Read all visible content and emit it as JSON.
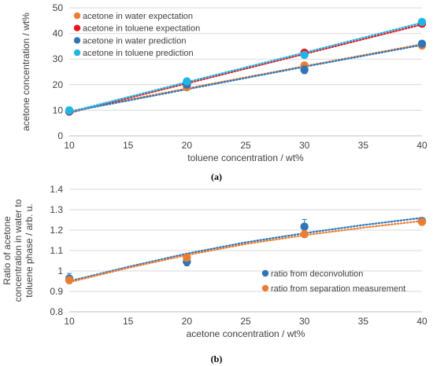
{
  "chart_data": [
    {
      "panel": "(a)",
      "type": "scatter",
      "xlabel": "toluene concentration / wt%",
      "ylabel": "acetone concentration / wt%",
      "xlim": [
        10,
        40
      ],
      "ylim": [
        0,
        50
      ],
      "xticks": [
        10,
        15,
        20,
        25,
        30,
        35,
        40
      ],
      "yticks": [
        0,
        10,
        20,
        30,
        40,
        50
      ],
      "grid": "horizontal",
      "legend_position": "top-left",
      "trendlines": "dotted linear fit per series",
      "series": [
        {
          "name": "acetone in water expectation",
          "color": "#ED7D31",
          "x": [
            10,
            20,
            30,
            40
          ],
          "y": [
            9.4,
            19.0,
            27.5,
            35.3
          ],
          "error": [
            0,
            0,
            0,
            0
          ],
          "trend": [
            9.6,
            18.5,
            27.2,
            35.8
          ]
        },
        {
          "name": "acetone in toluene expectation",
          "color": "#E5141B",
          "x": [
            10,
            20,
            30,
            40
          ],
          "y": [
            9.5,
            20.5,
            32.5,
            43.8
          ],
          "error": [
            0,
            0,
            0,
            0
          ],
          "trend": [
            9.0,
            20.5,
            32.0,
            43.5
          ]
        },
        {
          "name": "acetone in water prediction",
          "color": "#2E75B6",
          "x": [
            10,
            20,
            30,
            40
          ],
          "y": [
            9.6,
            20.0,
            25.8,
            36.0
          ],
          "error": [
            0.3,
            0.4,
            1.5,
            0.8
          ],
          "trend": [
            9.4,
            18.2,
            27.0,
            35.5
          ]
        },
        {
          "name": "acetone in toluene prediction",
          "color": "#21B5E6",
          "x": [
            10,
            20,
            30,
            40
          ],
          "y": [
            10.0,
            21.3,
            31.6,
            44.5
          ],
          "error": [
            0.4,
            1.2,
            1.0,
            1.2
          ],
          "trend": [
            9.3,
            21.0,
            32.5,
            44.2
          ]
        }
      ]
    },
    {
      "panel": "(b)",
      "type": "scatter",
      "xlabel": "acetone concentration / wt%",
      "ylabel_lines": [
        "Ratio of acetone",
        "concentration in water to",
        "toluene phase / arb. u."
      ],
      "xlim": [
        10,
        40
      ],
      "ylim": [
        0.8,
        1.4
      ],
      "xticks": [
        10,
        15,
        20,
        25,
        30,
        35,
        40
      ],
      "yticks": [
        0.8,
        0.9,
        1.0,
        1.1,
        1.2,
        1.3,
        1.4
      ],
      "ytick_labels": [
        "0.8",
        "0.9",
        "1",
        "1.1",
        "1.2",
        "1.3",
        "1.4"
      ],
      "grid": "horizontal",
      "legend_position": "center-right",
      "trendlines": "dotted curved fit per series",
      "series": [
        {
          "name": "ratio from deconvolution",
          "color": "#2E75B6",
          "x": [
            10,
            20,
            30,
            40
          ],
          "y": [
            0.963,
            1.045,
            1.217,
            1.245
          ],
          "error": [
            0.025,
            0.02,
            0.035,
            0.012
          ],
          "trend": [
            [
              10,
              0.95
            ],
            [
              15,
              1.02
            ],
            [
              20,
              1.085
            ],
            [
              25,
              1.14
            ],
            [
              30,
              1.185
            ],
            [
              35,
              1.225
            ],
            [
              40,
              1.26
            ]
          ]
        },
        {
          "name": "ratio from separation measurement",
          "color": "#ED7D31",
          "x": [
            10,
            20,
            30,
            40
          ],
          "y": [
            0.955,
            1.065,
            1.18,
            1.24
          ],
          "error": [
            0,
            0,
            0,
            0
          ],
          "trend": [
            [
              10,
              0.945
            ],
            [
              15,
              1.015
            ],
            [
              20,
              1.078
            ],
            [
              25,
              1.132
            ],
            [
              30,
              1.175
            ],
            [
              35,
              1.212
            ],
            [
              40,
              1.245
            ]
          ]
        }
      ]
    }
  ]
}
